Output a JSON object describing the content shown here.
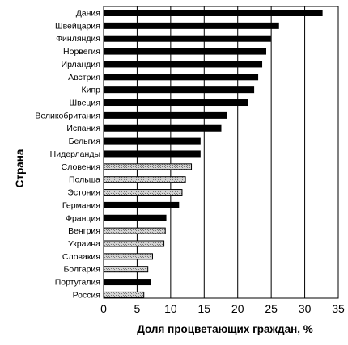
{
  "chart_data": {
    "type": "bar",
    "orientation": "horizontal",
    "title": "",
    "xlabel": "Доля процветающих граждан, %",
    "ylabel": "Страна",
    "xlim": [
      0,
      35
    ],
    "xticks": [
      0,
      5,
      10,
      15,
      20,
      25,
      30,
      35
    ],
    "grid": "vertical",
    "categories": [
      "Дания",
      "Швейцария",
      "Финляндия",
      "Норвегия",
      "Ирландия",
      "Австрия",
      "Кипр",
      "Швеция",
      "Великобритания",
      "Испания",
      "Бельгия",
      "Нидерланды",
      "Словения",
      "Польша",
      "Эстония",
      "Германия",
      "Франция",
      "Венгрия",
      "Украина",
      "Словакия",
      "Болгария",
      "Португалия",
      "Россия"
    ],
    "values": [
      32.6,
      26.1,
      24.9,
      24.2,
      23.6,
      23.0,
      22.4,
      21.5,
      18.3,
      17.5,
      14.4,
      14.4,
      13.1,
      12.2,
      11.7,
      11.2,
      9.3,
      9.2,
      9.0,
      7.3,
      6.6,
      7.0,
      6.0
    ],
    "bar_styles": [
      "solid",
      "solid",
      "solid",
      "solid",
      "solid",
      "solid",
      "solid",
      "solid",
      "solid",
      "solid",
      "solid",
      "solid",
      "hatched",
      "hatched",
      "hatched",
      "solid",
      "solid",
      "hatched",
      "hatched",
      "hatched",
      "hatched",
      "solid",
      "hatched"
    ],
    "colors": {
      "solid": "#000000",
      "hatched_fill": "#c8c8c8",
      "border": "#000000",
      "grid": "#000000"
    }
  }
}
